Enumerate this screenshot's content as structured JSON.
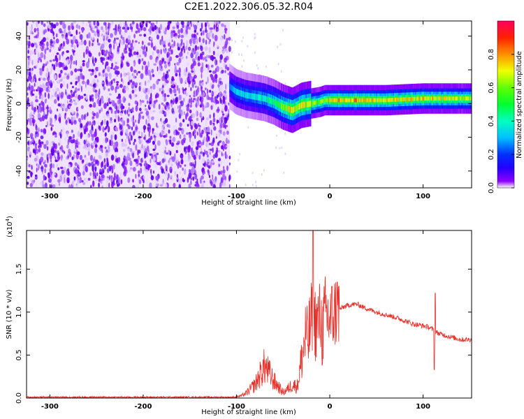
{
  "title": "C2E1.2022.306.05.32.R04",
  "chart_data": [
    {
      "type": "heatmap",
      "xlabel": "Height of straight line (km)",
      "ylabel": "Frequency (Hz)",
      "xlim": [
        -325,
        152
      ],
      "ylim": [
        -50,
        49
      ],
      "x_ticks": [
        -300,
        -200,
        -100,
        0,
        100
      ],
      "y_ticks": [
        -40,
        -20,
        0,
        20,
        40
      ],
      "colorbar": {
        "label": "Normalized spectral amplitude",
        "range": [
          0.0,
          1.0
        ],
        "ticks": [
          0.0,
          0.2,
          0.4,
          0.6,
          0.8
        ]
      },
      "noise_region_x": [
        -325,
        -107
      ],
      "signal_track": {
        "x": [
          -107,
          -100,
          -90,
          -80,
          -70,
          -60,
          -50,
          -45,
          -40,
          -30,
          -20,
          -10,
          -5,
          0,
          20,
          40,
          60,
          80,
          100,
          120,
          152
        ],
        "y": [
          10,
          7,
          5,
          4,
          3,
          1,
          -2,
          -3,
          -4,
          -1,
          0,
          1,
          2,
          2,
          2,
          2,
          2,
          2.5,
          3,
          3,
          3
        ],
        "amplitude": [
          0.3,
          0.35,
          0.4,
          0.42,
          0.45,
          0.55,
          0.7,
          0.85,
          0.9,
          0.85,
          0.8,
          0.75,
          0.8,
          0.9,
          0.95,
          0.95,
          0.9,
          0.85,
          0.9,
          0.85,
          0.8
        ]
      }
    },
    {
      "type": "line",
      "xlabel": "Height of straight line (km)",
      "ylabel": "SNR (10 * v/v)",
      "yscale_label": "(x10",
      "yscale_exp": "4",
      "xlim": [
        -325,
        152
      ],
      "ylim": [
        0,
        1.95
      ],
      "x_ticks": [
        -300,
        -200,
        -100,
        0,
        100
      ],
      "y_ticks": [
        0.0,
        0.5,
        1.0,
        1.5
      ],
      "series": [
        {
          "color": "#e8302a",
          "x": [
            -325,
            -300,
            -250,
            -200,
            -150,
            -120,
            -100,
            -95,
            -90,
            -85,
            -80,
            -75,
            -70,
            -65,
            -60,
            -55,
            -50,
            -45,
            -40,
            -35,
            -30,
            -25,
            -22,
            -20,
            -18,
            -15,
            -12,
            -10,
            -8,
            -5,
            -3,
            0,
            5,
            10,
            15,
            20,
            25,
            30,
            35,
            40,
            50,
            60,
            70,
            80,
            90,
            100,
            105,
            110,
            112,
            115,
            120,
            130,
            140,
            152
          ],
          "y": [
            0.01,
            0.01,
            0.01,
            0.01,
            0.01,
            0.01,
            0.01,
            0.02,
            0.04,
            0.08,
            0.12,
            0.2,
            0.28,
            0.22,
            0.15,
            0.1,
            0.05,
            0.08,
            0.12,
            0.1,
            0.35,
            0.6,
            0.75,
            0.9,
            1.0,
            0.85,
            0.9,
            0.95,
            0.75,
            1.0,
            0.95,
            0.92,
            1.0,
            1.03,
            1.06,
            1.08,
            1.09,
            1.09,
            1.06,
            1.04,
            1.0,
            0.97,
            0.94,
            0.9,
            0.86,
            0.84,
            0.83,
            0.8,
            0.79,
            0.76,
            0.74,
            0.71,
            0.68,
            0.68
          ]
        }
      ]
    }
  ]
}
